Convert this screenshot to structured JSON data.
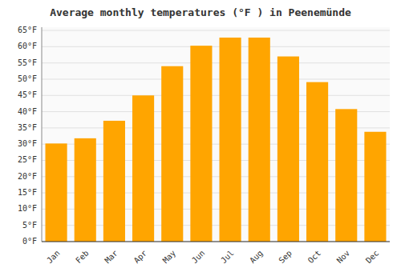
{
  "chart_data": {
    "type": "bar",
    "title": "Average monthly temperatures (°F ) in Peenemünde",
    "categories": [
      "Jan",
      "Feb",
      "Mar",
      "Apr",
      "May",
      "Jun",
      "Jul",
      "Aug",
      "Sep",
      "Oct",
      "Nov",
      "Dec"
    ],
    "values": [
      30.2,
      31.8,
      37.2,
      45.0,
      54.0,
      60.3,
      62.8,
      62.8,
      57.0,
      49.1,
      40.8,
      33.8
    ],
    "color": "#FFA500",
    "ylim": [
      0,
      66
    ],
    "yticks": [
      {
        "value": 0,
        "label": "0°F"
      },
      {
        "value": 5,
        "label": "5°F"
      },
      {
        "value": 10,
        "label": "10°F"
      },
      {
        "value": 15,
        "label": "15°F"
      },
      {
        "value": 20,
        "label": "20°F"
      },
      {
        "value": 25,
        "label": "25°F"
      },
      {
        "value": 30,
        "label": "30°F"
      },
      {
        "value": 35,
        "label": "35°F"
      },
      {
        "value": 40,
        "label": "40°F"
      },
      {
        "value": 45,
        "label": "45°F"
      },
      {
        "value": 50,
        "label": "50°F"
      },
      {
        "value": 55,
        "label": "55°F"
      },
      {
        "value": 60,
        "label": "60°F"
      },
      {
        "value": 65,
        "label": "65°F"
      }
    ],
    "grid": true
  }
}
